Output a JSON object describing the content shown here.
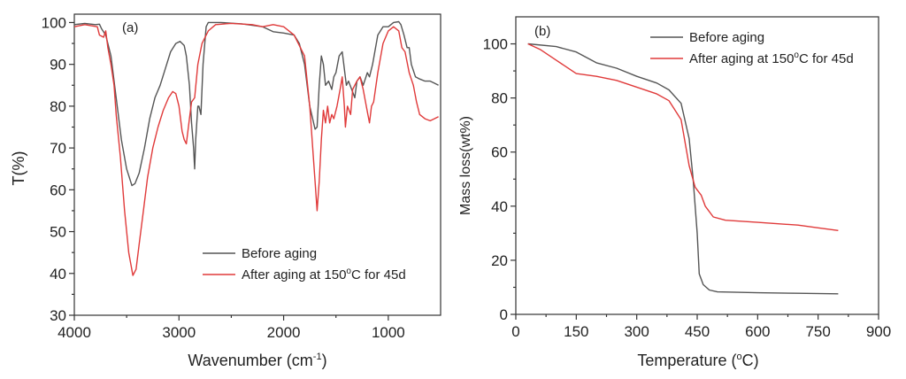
{
  "chart_data": [
    {
      "type": "line",
      "panel_label": "(a)",
      "title": "",
      "xlabel": "Wavenumber (cm",
      "xlabel_sup": "-1",
      "xlabel_end": ")",
      "ylabel": "T(%)",
      "xlim": [
        4000,
        500
      ],
      "ylim": [
        30,
        102
      ],
      "x_ticks": [
        4000,
        3000,
        2000,
        1000
      ],
      "x_tick_labels": [
        "4000",
        "3000",
        "2000",
        "1000"
      ],
      "x_minor_ticks": [
        3500,
        2500,
        1500
      ],
      "y_ticks": [
        30,
        40,
        50,
        60,
        70,
        80,
        90,
        100
      ],
      "y_tick_labels": [
        "30",
        "40",
        "50",
        "60",
        "70",
        "80",
        "90",
        "100"
      ],
      "grid": false,
      "legend_position": "lower-right",
      "series": [
        {
          "name": "Before aging",
          "color": "#555555",
          "x": [
            4000,
            3900,
            3800,
            3760,
            3740,
            3700,
            3650,
            3600,
            3550,
            3500,
            3450,
            3420,
            3380,
            3330,
            3280,
            3230,
            3180,
            3130,
            3080,
            3030,
            2990,
            2950,
            2930,
            2900,
            2880,
            2860,
            2850,
            2840,
            2820,
            2810,
            2790,
            2770,
            2740,
            2720,
            2600,
            2400,
            2200,
            2100,
            2000,
            1900,
            1850,
            1800,
            1750,
            1700,
            1680,
            1660,
            1640,
            1620,
            1600,
            1570,
            1540,
            1520,
            1500,
            1470,
            1440,
            1400,
            1380,
            1350,
            1320,
            1300,
            1270,
            1240,
            1200,
            1180,
            1150,
            1100,
            1050,
            1000,
            950,
            900,
            880,
            850,
            820,
            800,
            780,
            740,
            700,
            650,
            600,
            560,
            520
          ],
          "y": [
            99.5,
            99.8,
            99.5,
            99.6,
            98.5,
            97,
            92,
            82,
            72,
            65,
            61,
            61.5,
            64,
            70,
            77,
            82,
            85,
            89,
            93,
            95,
            95.5,
            94.5,
            92,
            85,
            76,
            70,
            65,
            72,
            80,
            80,
            78,
            90,
            99,
            100,
            100,
            99.7,
            99,
            97.8,
            97.5,
            97,
            95,
            90,
            80,
            74.5,
            75,
            85,
            92,
            90,
            85,
            86,
            84,
            87,
            88,
            92,
            93,
            85,
            86,
            84,
            82,
            86,
            87,
            85,
            88,
            87,
            90,
            97,
            99,
            99,
            100,
            100.2,
            99.5,
            97,
            94,
            94,
            90,
            87,
            86.5,
            86,
            86,
            85.5,
            85
          ]
        },
        {
          "name": "After aging at 150",
          "name_sup": "o",
          "name_end": "C for 45d",
          "color": "#e03a3a",
          "x": [
            4000,
            3900,
            3780,
            3760,
            3720,
            3700,
            3680,
            3650,
            3620,
            3600,
            3560,
            3520,
            3480,
            3440,
            3410,
            3380,
            3340,
            3300,
            3250,
            3200,
            3150,
            3100,
            3060,
            3030,
            3000,
            2970,
            2950,
            2930,
            2900,
            2880,
            2850,
            2820,
            2780,
            2720,
            2650,
            2500,
            2300,
            2200,
            2100,
            2000,
            1900,
            1800,
            1750,
            1700,
            1680,
            1660,
            1640,
            1620,
            1600,
            1580,
            1560,
            1540,
            1520,
            1490,
            1460,
            1440,
            1420,
            1410,
            1390,
            1360,
            1340,
            1300,
            1270,
            1240,
            1210,
            1180,
            1160,
            1140,
            1100,
            1050,
            1000,
            950,
            900,
            870,
            840,
            800,
            760,
            730,
            700,
            650,
            600,
            560,
            520
          ],
          "y": [
            99,
            99.5,
            99,
            97,
            96.5,
            98,
            94,
            90,
            85,
            78,
            68,
            55,
            45,
            39.5,
            41,
            47,
            55,
            63,
            70,
            75,
            79,
            82,
            83.5,
            83,
            80,
            74,
            72,
            71,
            77,
            81,
            82,
            90,
            95,
            98,
            99.5,
            99.8,
            99.5,
            99,
            99.5,
            99,
            97,
            92,
            80,
            62,
            55,
            62,
            72,
            79,
            76,
            80,
            76,
            78,
            77,
            80,
            84,
            87,
            80,
            75,
            80,
            78,
            84,
            86,
            87,
            84,
            80,
            76,
            80,
            81,
            88,
            95,
            98,
            99,
            98,
            94,
            93,
            88,
            85,
            81,
            78,
            77,
            76.5,
            77,
            77.5
          ]
        }
      ]
    },
    {
      "type": "line",
      "panel_label": "(b)",
      "title": "",
      "xlabel": "Temperature (",
      "xlabel_sup": "o",
      "xlabel_end": "C)",
      "ylabel": "Mass loss(wt%)",
      "xlim": [
        0,
        900
      ],
      "ylim": [
        0,
        110
      ],
      "x_ticks": [
        0,
        150,
        300,
        450,
        600,
        750,
        900
      ],
      "x_tick_labels": [
        "0",
        "150",
        "300",
        "450",
        "600",
        "750",
        "900"
      ],
      "x_minor_ticks": [
        75,
        225,
        375,
        525,
        675,
        825
      ],
      "y_ticks": [
        0,
        20,
        40,
        60,
        80,
        100
      ],
      "y_tick_labels": [
        "0",
        "20",
        "40",
        "60",
        "80",
        "100"
      ],
      "y_minor_ticks": [
        10,
        30,
        50,
        70,
        90
      ],
      "grid": false,
      "legend_position": "top-right",
      "series": [
        {
          "name": "Before aging",
          "color": "#555555",
          "x": [
            30,
            100,
            150,
            200,
            250,
            300,
            350,
            380,
            410,
            430,
            440,
            450,
            455,
            465,
            480,
            500,
            600,
            700,
            800
          ],
          "y": [
            100,
            99,
            97,
            93,
            91,
            88,
            85.5,
            83,
            78,
            65,
            50,
            30,
            15,
            11,
            9,
            8.3,
            8.0,
            7.8,
            7.6
          ]
        },
        {
          "name": "After aging at 150",
          "name_sup": "o",
          "name_end": "C for 45d",
          "color": "#e03a3a",
          "x": [
            30,
            60,
            100,
            150,
            200,
            250,
            300,
            350,
            380,
            410,
            430,
            445,
            460,
            470,
            490,
            520,
            600,
            700,
            750,
            800
          ],
          "y": [
            100,
            98,
            94,
            89,
            88,
            86.5,
            84,
            81.5,
            79,
            72,
            55,
            47,
            44,
            40,
            36,
            34.8,
            34,
            33,
            32,
            31
          ]
        }
      ]
    }
  ]
}
